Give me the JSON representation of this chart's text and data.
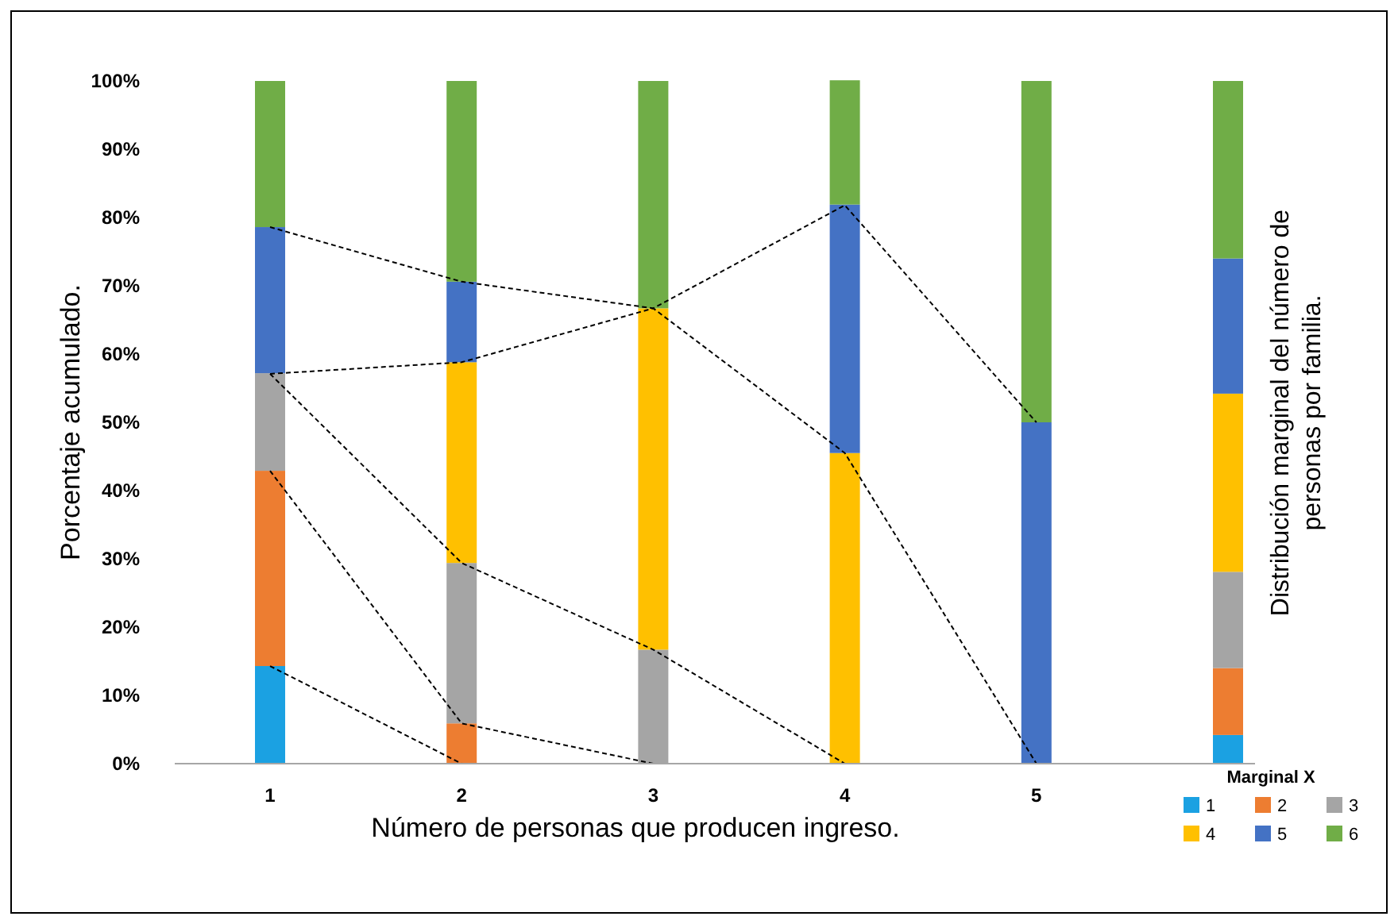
{
  "chart_data": {
    "type": "bar",
    "stacked": true,
    "xlabel": "Número de personas que producen ingreso.",
    "ylabel": "Porcentaje acumulado.",
    "y2label": "Distribución marginal del número de personas por familia.",
    "legend_title": "Marginal X",
    "legend": "bottom right",
    "grid": false,
    "categories": [
      "1",
      "2",
      "3",
      "4",
      "5",
      null
    ],
    "ylim": [
      0,
      100
    ],
    "yticks": [
      {
        "value": 0,
        "label": "0%"
      },
      {
        "value": 10,
        "label": "10%"
      },
      {
        "value": 20,
        "label": "20%"
      },
      {
        "value": 30,
        "label": "30%"
      },
      {
        "value": 40,
        "label": "40%"
      },
      {
        "value": 50,
        "label": "50%"
      },
      {
        "value": 60,
        "label": "60%"
      },
      {
        "value": 70,
        "label": "70%"
      },
      {
        "value": 80,
        "label": "80%"
      },
      {
        "value": 90,
        "label": "90%"
      },
      {
        "value": 100,
        "label": "100%"
      }
    ],
    "series": [
      {
        "name": "1",
        "color": "#1ba1e2",
        "values": [
          14.3,
          0,
          0,
          0,
          0,
          4.2
        ]
      },
      {
        "name": "2",
        "color": "#ed7d31",
        "values": [
          28.6,
          5.9,
          0,
          0,
          0,
          9.8
        ]
      },
      {
        "name": "3",
        "color": "#a5a5a5",
        "values": [
          14.3,
          23.5,
          16.7,
          0,
          0,
          14.1
        ]
      },
      {
        "name": "4",
        "color": "#ffc000",
        "values": [
          0,
          29.4,
          50,
          45.5,
          0,
          26.1
        ]
      },
      {
        "name": "5",
        "color": "#4472c4",
        "values": [
          21.4,
          11.8,
          0,
          36.4,
          50,
          19.8
        ]
      },
      {
        "name": "6",
        "color": "#70ad47",
        "values": [
          21.4,
          29.4,
          33.3,
          18.2,
          50,
          26.0
        ]
      },
      {
        "type": "line",
        "color": "#000000",
        "line_style": "dashed",
        "marker": "none",
        "values": [
          14.3,
          0,
          null,
          null,
          null,
          null
        ]
      },
      {
        "type": "line",
        "color": "#000000",
        "line_style": "dashed",
        "marker": "none",
        "values": [
          42.9,
          5.9,
          0,
          null,
          null,
          null
        ]
      },
      {
        "type": "line",
        "color": "#000000",
        "line_style": "dashed",
        "marker": "none",
        "values": [
          57.1,
          29.4,
          16.7,
          0,
          null,
          null
        ]
      },
      {
        "type": "line",
        "color": "#000000",
        "line_style": "dashed",
        "marker": "none",
        "values": [
          57.1,
          58.8,
          66.7,
          45.5,
          0,
          null
        ]
      },
      {
        "type": "line",
        "color": "#000000",
        "line_style": "dashed",
        "marker": "none",
        "values": [
          78.6,
          70.6,
          66.7,
          81.8,
          50,
          null
        ]
      }
    ]
  }
}
